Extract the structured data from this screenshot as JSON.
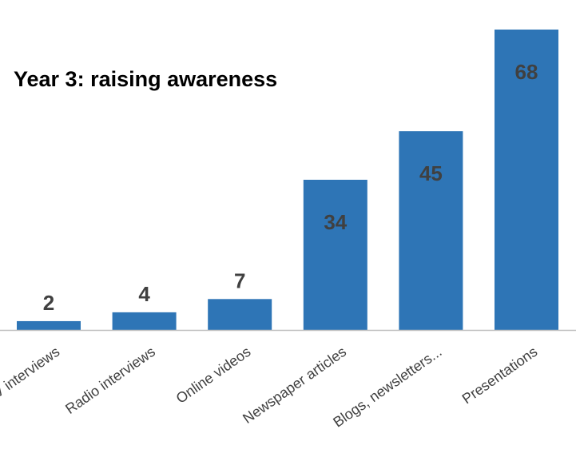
{
  "chart_data": {
    "type": "bar",
    "title": "Year 3:  raising awareness",
    "categories": [
      "TV interviews",
      "Radio interviews",
      "Online videos",
      "Newspaper articles",
      "Blogs, newsletters...",
      "Presentations"
    ],
    "values": [
      2,
      4,
      7,
      34,
      45,
      68
    ],
    "ylim": [
      0,
      68
    ],
    "grid": false,
    "bar_color": "#2E75B6",
    "axis_color": "#BFBFBF",
    "label_color_outside": "#404040",
    "label_color_inside": "#404040"
  }
}
